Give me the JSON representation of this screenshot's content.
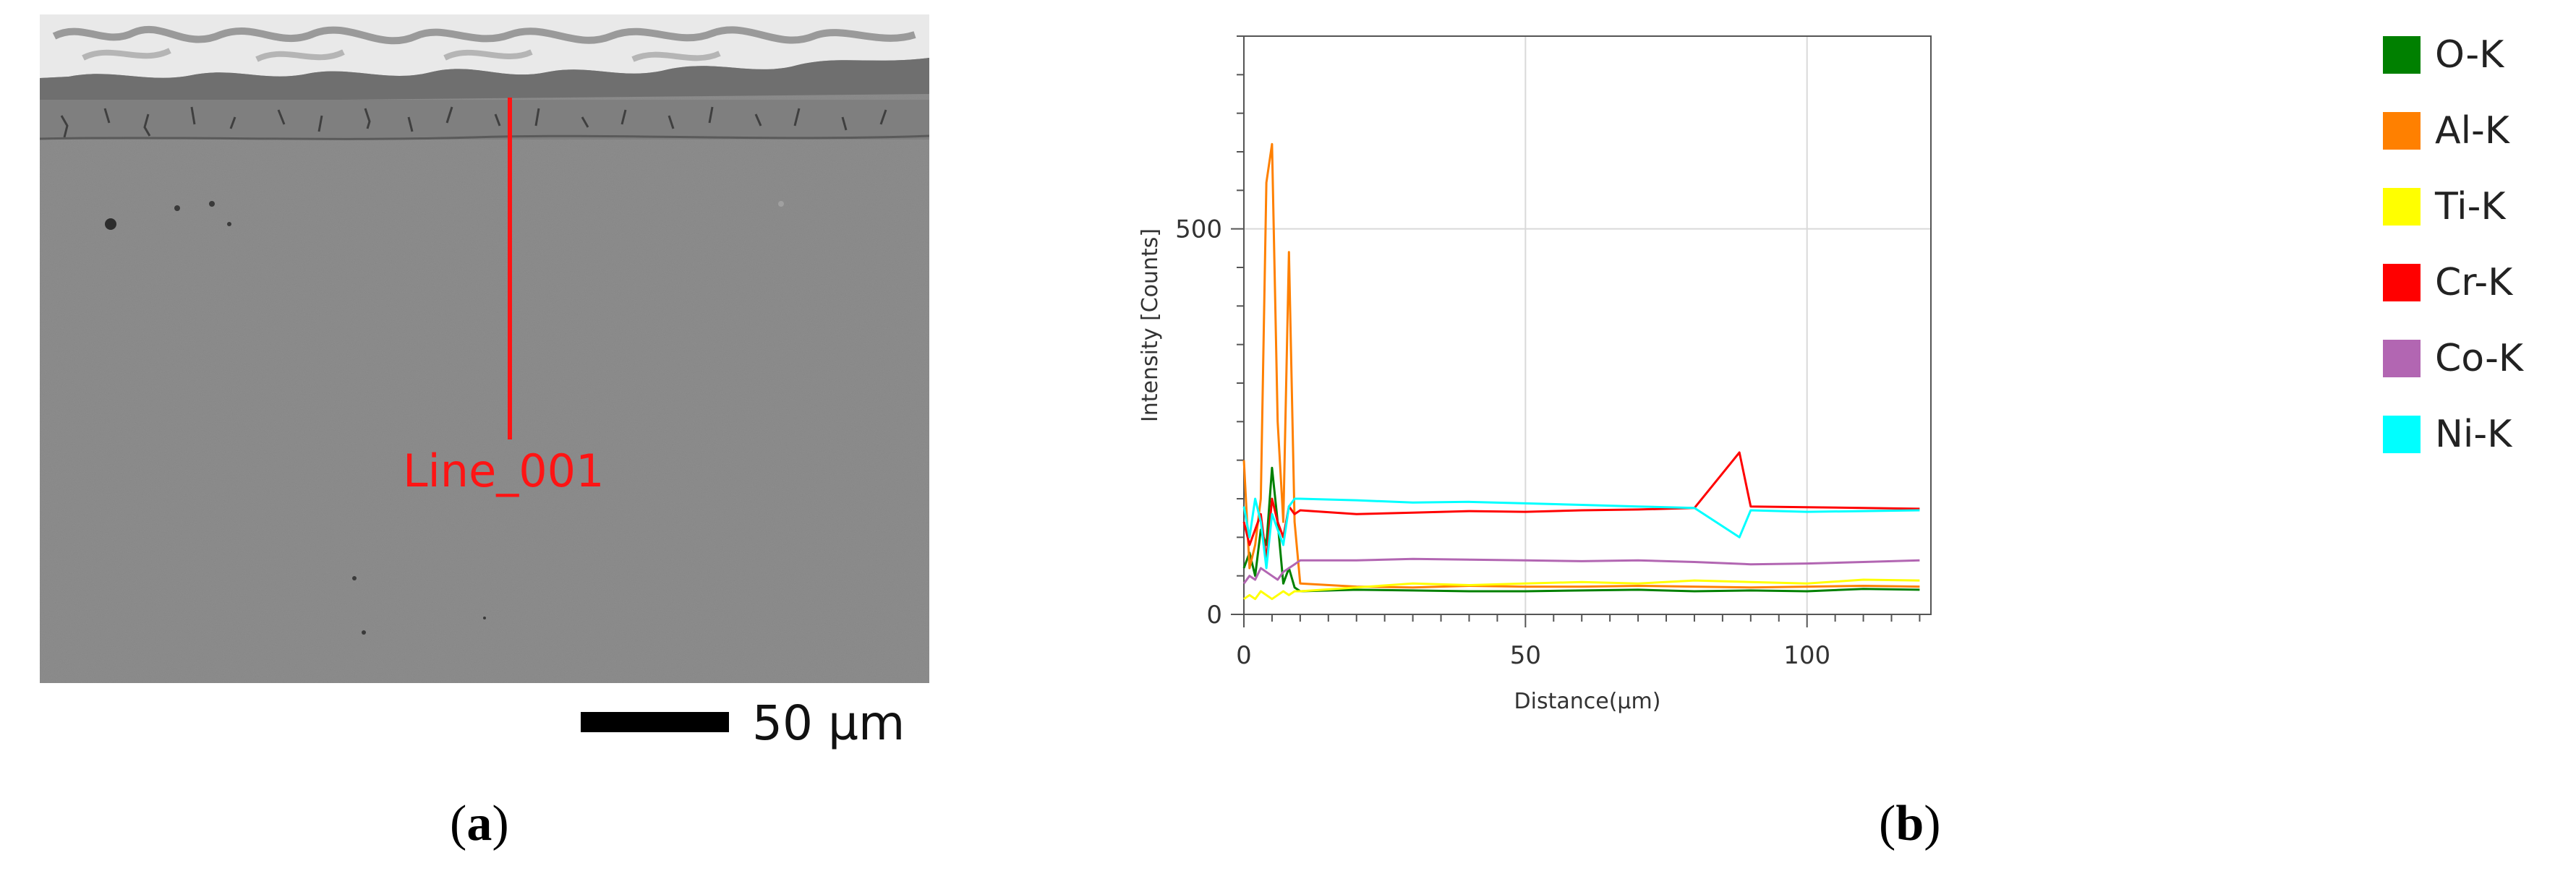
{
  "panel_a": {
    "line_label": "Line_001",
    "scale_bar_label": "50 µm",
    "caption_letter": "a"
  },
  "panel_b": {
    "caption_letter": "b"
  },
  "chart_data": {
    "type": "line",
    "title": "",
    "xlabel": "Distance(µm)",
    "ylabel": "Intensity [Counts]",
    "xlim": [
      0,
      122
    ],
    "ylim": [
      0,
      750
    ],
    "xticks": [
      0,
      50,
      100
    ],
    "yticks": [
      0,
      500
    ],
    "grid": true,
    "legend_position": "right",
    "series": [
      {
        "name": "O-K",
        "color": "#008000",
        "x": [
          0,
          1,
          2,
          3,
          4,
          5,
          6,
          7,
          8,
          9,
          10,
          20,
          30,
          40,
          50,
          60,
          70,
          80,
          90,
          100,
          110,
          120
        ],
        "values": [
          60,
          80,
          50,
          110,
          90,
          190,
          120,
          40,
          60,
          35,
          30,
          32,
          31,
          30,
          30,
          31,
          32,
          30,
          31,
          30,
          33,
          32
        ]
      },
      {
        "name": "Al-K",
        "color": "#ff8000",
        "x": [
          0,
          1,
          2,
          3,
          4,
          5,
          6,
          7,
          8,
          9,
          10,
          20,
          30,
          40,
          50,
          60,
          70,
          80,
          90,
          100,
          110,
          120
        ],
        "values": [
          200,
          60,
          90,
          150,
          560,
          610,
          250,
          120,
          470,
          120,
          40,
          36,
          35,
          37,
          36,
          36,
          37,
          36,
          35,
          36,
          37,
          36
        ]
      },
      {
        "name": "Ti-K",
        "color": "#ffff00",
        "x": [
          0,
          1,
          2,
          3,
          4,
          5,
          6,
          7,
          8,
          9,
          10,
          20,
          30,
          40,
          50,
          60,
          70,
          80,
          90,
          100,
          110,
          120
        ],
        "values": [
          20,
          25,
          20,
          30,
          25,
          20,
          25,
          30,
          25,
          30,
          30,
          35,
          40,
          38,
          40,
          42,
          40,
          44,
          42,
          40,
          45,
          44
        ]
      },
      {
        "name": "Cr-K",
        "color": "#ff0000",
        "x": [
          0,
          1,
          2,
          3,
          4,
          5,
          6,
          7,
          8,
          9,
          10,
          20,
          30,
          40,
          50,
          60,
          70,
          80,
          88,
          90,
          100,
          110,
          120
        ],
        "values": [
          120,
          90,
          110,
          130,
          70,
          150,
          120,
          100,
          140,
          130,
          135,
          130,
          132,
          134,
          133,
          135,
          136,
          138,
          210,
          140,
          139,
          138,
          137
        ]
      },
      {
        "name": "Co-K",
        "color": "#b266b2",
        "x": [
          0,
          1,
          2,
          3,
          4,
          5,
          6,
          7,
          8,
          9,
          10,
          20,
          30,
          40,
          50,
          60,
          70,
          80,
          90,
          100,
          110,
          120
        ],
        "values": [
          40,
          50,
          45,
          60,
          55,
          50,
          45,
          55,
          60,
          65,
          70,
          70,
          72,
          71,
          70,
          69,
          70,
          68,
          65,
          66,
          68,
          70
        ]
      },
      {
        "name": "Ni-K",
        "color": "#00ffff",
        "x": [
          0,
          1,
          2,
          3,
          4,
          5,
          6,
          7,
          8,
          9,
          10,
          20,
          30,
          40,
          50,
          60,
          70,
          80,
          88,
          90,
          100,
          110,
          120
        ],
        "values": [
          140,
          100,
          150,
          120,
          60,
          130,
          110,
          90,
          140,
          150,
          150,
          148,
          145,
          146,
          144,
          142,
          140,
          138,
          100,
          135,
          133,
          134,
          135
        ]
      }
    ]
  }
}
